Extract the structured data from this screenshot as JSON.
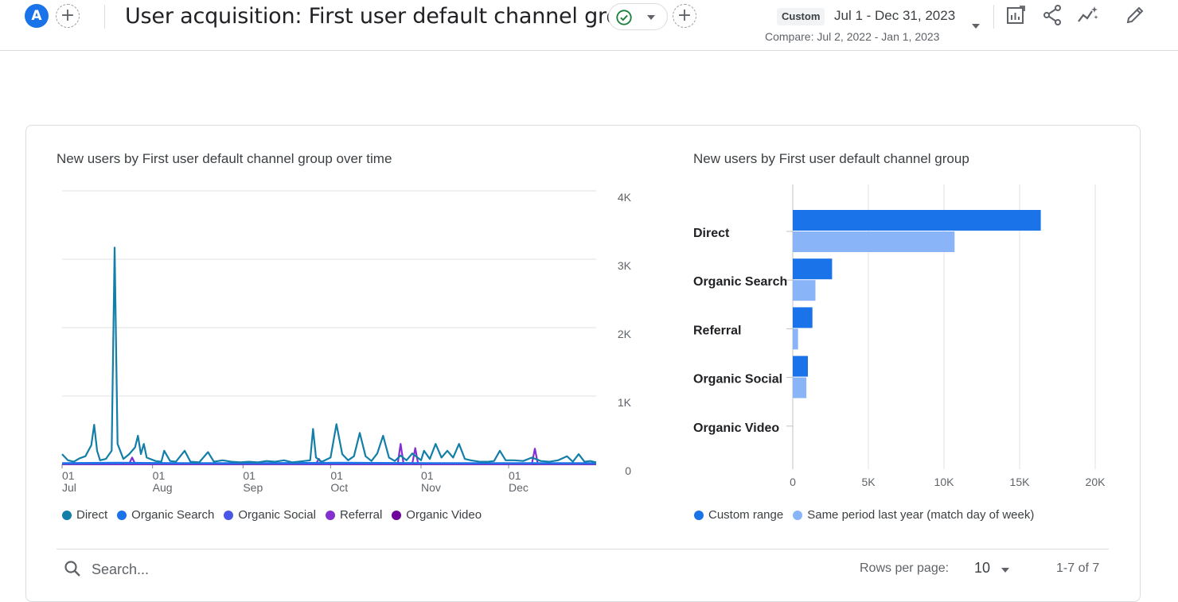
{
  "header": {
    "avatar_letter": "A",
    "title": "User acquisition: First user default channel group",
    "custom_tag": "Custom",
    "date_range": "Jul 1 - Dec 31, 2023",
    "compare": "Compare: Jul 2, 2022 - Jan 1, 2023",
    "icons": [
      "add-comparison-icon",
      "status-check-icon",
      "add-filter-icon",
      "customize-report-icon",
      "share-icon",
      "insights-icon",
      "edit-icon"
    ],
    "accent_color": "#1a73e8",
    "status_color": "#188038"
  },
  "line_chart": {
    "title": "New users by First user default channel group over time",
    "chart_data": {
      "type": "line",
      "x_ticks": [
        {
          "day": "01",
          "month": "Jul",
          "date": "2023-07-01"
        },
        {
          "day": "01",
          "month": "Aug",
          "date": "2023-08-01"
        },
        {
          "day": "01",
          "month": "Sep",
          "date": "2023-09-01"
        },
        {
          "day": "01",
          "month": "Oct",
          "date": "2023-10-01"
        },
        {
          "day": "01",
          "month": "Nov",
          "date": "2023-11-01"
        },
        {
          "day": "01",
          "month": "Dec",
          "date": "2023-12-01"
        }
      ],
      "x_range": [
        "2023-07-01",
        "2023-12-31"
      ],
      "y_ticks": [
        "0",
        "1K",
        "2K",
        "3K",
        "4K"
      ],
      "ylim": [
        0,
        4000
      ],
      "y_axis_side": "right",
      "grid": true,
      "series": [
        {
          "name": "Direct",
          "color": "#137ea7",
          "points": [
            [
              "2023-07-01",
              150
            ],
            [
              "2023-07-03",
              60
            ],
            [
              "2023-07-05",
              40
            ],
            [
              "2023-07-07",
              90
            ],
            [
              "2023-07-09",
              120
            ],
            [
              "2023-07-11",
              280
            ],
            [
              "2023-07-12",
              580
            ],
            [
              "2023-07-13",
              200
            ],
            [
              "2023-07-14",
              60
            ],
            [
              "2023-07-16",
              80
            ],
            [
              "2023-07-18",
              200
            ],
            [
              "2023-07-19",
              3170
            ],
            [
              "2023-07-20",
              300
            ],
            [
              "2023-07-22",
              80
            ],
            [
              "2023-07-24",
              150
            ],
            [
              "2023-07-26",
              250
            ],
            [
              "2023-07-27",
              420
            ],
            [
              "2023-07-28",
              150
            ],
            [
              "2023-07-29",
              300
            ],
            [
              "2023-07-30",
              100
            ],
            [
              "2023-08-02",
              50
            ],
            [
              "2023-08-04",
              40
            ],
            [
              "2023-08-05",
              200
            ],
            [
              "2023-08-07",
              50
            ],
            [
              "2023-08-09",
              40
            ],
            [
              "2023-08-12",
              200
            ],
            [
              "2023-08-14",
              40
            ],
            [
              "2023-08-17",
              30
            ],
            [
              "2023-08-20",
              180
            ],
            [
              "2023-08-22",
              40
            ],
            [
              "2023-08-25",
              60
            ],
            [
              "2023-08-28",
              40
            ],
            [
              "2023-08-31",
              30
            ],
            [
              "2023-09-03",
              40
            ],
            [
              "2023-09-06",
              30
            ],
            [
              "2023-09-09",
              50
            ],
            [
              "2023-09-12",
              40
            ],
            [
              "2023-09-15",
              60
            ],
            [
              "2023-09-18",
              30
            ],
            [
              "2023-09-22",
              50
            ],
            [
              "2023-09-24",
              60
            ],
            [
              "2023-09-25",
              520
            ],
            [
              "2023-09-26",
              100
            ],
            [
              "2023-09-28",
              40
            ],
            [
              "2023-09-30",
              80
            ],
            [
              "2023-10-01",
              100
            ],
            [
              "2023-10-03",
              590
            ],
            [
              "2023-10-05",
              150
            ],
            [
              "2023-10-07",
              60
            ],
            [
              "2023-10-09",
              120
            ],
            [
              "2023-10-11",
              460
            ],
            [
              "2023-10-13",
              120
            ],
            [
              "2023-10-15",
              50
            ],
            [
              "2023-10-17",
              160
            ],
            [
              "2023-10-19",
              420
            ],
            [
              "2023-10-21",
              100
            ],
            [
              "2023-10-23",
              50
            ],
            [
              "2023-10-25",
              130
            ],
            [
              "2023-10-27",
              60
            ],
            [
              "2023-10-29",
              160
            ],
            [
              "2023-11-01",
              60
            ],
            [
              "2023-11-02",
              200
            ],
            [
              "2023-11-04",
              80
            ],
            [
              "2023-11-06",
              300
            ],
            [
              "2023-11-08",
              100
            ],
            [
              "2023-11-10",
              200
            ],
            [
              "2023-11-12",
              100
            ],
            [
              "2023-11-14",
              300
            ],
            [
              "2023-11-16",
              80
            ],
            [
              "2023-11-18",
              60
            ],
            [
              "2023-11-21",
              40
            ],
            [
              "2023-11-24",
              40
            ],
            [
              "2023-11-26",
              50
            ],
            [
              "2023-11-28",
              200
            ],
            [
              "2023-11-30",
              60
            ],
            [
              "2023-12-03",
              60
            ],
            [
              "2023-12-06",
              50
            ],
            [
              "2023-12-09",
              100
            ],
            [
              "2023-12-12",
              50
            ],
            [
              "2023-12-15",
              40
            ],
            [
              "2023-12-18",
              60
            ],
            [
              "2023-12-21",
              120
            ],
            [
              "2023-12-23",
              40
            ],
            [
              "2023-12-25",
              150
            ],
            [
              "2023-12-27",
              40
            ],
            [
              "2023-12-29",
              50
            ],
            [
              "2023-12-31",
              30
            ]
          ]
        },
        {
          "name": "Organic Search",
          "color": "#1a73e8",
          "points": [
            [
              "2023-07-01",
              20
            ],
            [
              "2023-07-20",
              25
            ],
            [
              "2023-08-10",
              20
            ],
            [
              "2023-09-05",
              20
            ],
            [
              "2023-10-05",
              25
            ],
            [
              "2023-11-05",
              20
            ],
            [
              "2023-12-05",
              20
            ],
            [
              "2023-12-31",
              20
            ]
          ]
        },
        {
          "name": "Organic Social",
          "color": "#4a57e6",
          "points": [
            [
              "2023-07-01",
              10
            ],
            [
              "2023-08-15",
              12
            ],
            [
              "2023-09-20",
              10
            ],
            [
              "2023-10-20",
              12
            ],
            [
              "2023-12-31",
              10
            ]
          ]
        },
        {
          "name": "Referral",
          "color": "#8430ce",
          "points": [
            [
              "2023-07-01",
              10
            ],
            [
              "2023-07-24",
              10
            ],
            [
              "2023-07-25",
              100
            ],
            [
              "2023-07-26",
              10
            ],
            [
              "2023-09-26",
              10
            ],
            [
              "2023-09-27",
              80
            ],
            [
              "2023-09-28",
              10
            ],
            [
              "2023-10-24",
              10
            ],
            [
              "2023-10-25",
              300
            ],
            [
              "2023-10-26",
              10
            ],
            [
              "2023-10-29",
              10
            ],
            [
              "2023-10-30",
              240
            ],
            [
              "2023-10-31",
              10
            ],
            [
              "2023-12-09",
              10
            ],
            [
              "2023-12-10",
              230
            ],
            [
              "2023-12-11",
              10
            ],
            [
              "2023-12-31",
              10
            ]
          ]
        },
        {
          "name": "Organic Video",
          "color": "#6f0099",
          "points": [
            [
              "2023-07-01",
              2
            ],
            [
              "2023-12-31",
              2
            ]
          ]
        }
      ]
    }
  },
  "bar_chart": {
    "title": "New users by First user default channel group",
    "chart_data": {
      "type": "bar",
      "orientation": "horizontal",
      "categories": [
        "Direct",
        "Organic Search",
        "Referral",
        "Organic Social",
        "Organic Video"
      ],
      "series": [
        {
          "name": "Custom range",
          "color": "#1a73e8",
          "values": [
            16400,
            2600,
            1300,
            1000,
            0
          ]
        },
        {
          "name": "Same period last year (match day of week)",
          "color": "#8ab4f8",
          "values": [
            10700,
            1500,
            350,
            900,
            0
          ]
        }
      ],
      "x_ticks": [
        "0",
        "5K",
        "10K",
        "15K",
        "20K"
      ],
      "xlim": [
        0,
        20000
      ],
      "grid": true
    }
  },
  "table_controls": {
    "search_placeholder": "Search...",
    "rows_per_page_label": "Rows per page:",
    "rows_per_page_value": "10",
    "pagination": "1-7 of 7"
  }
}
